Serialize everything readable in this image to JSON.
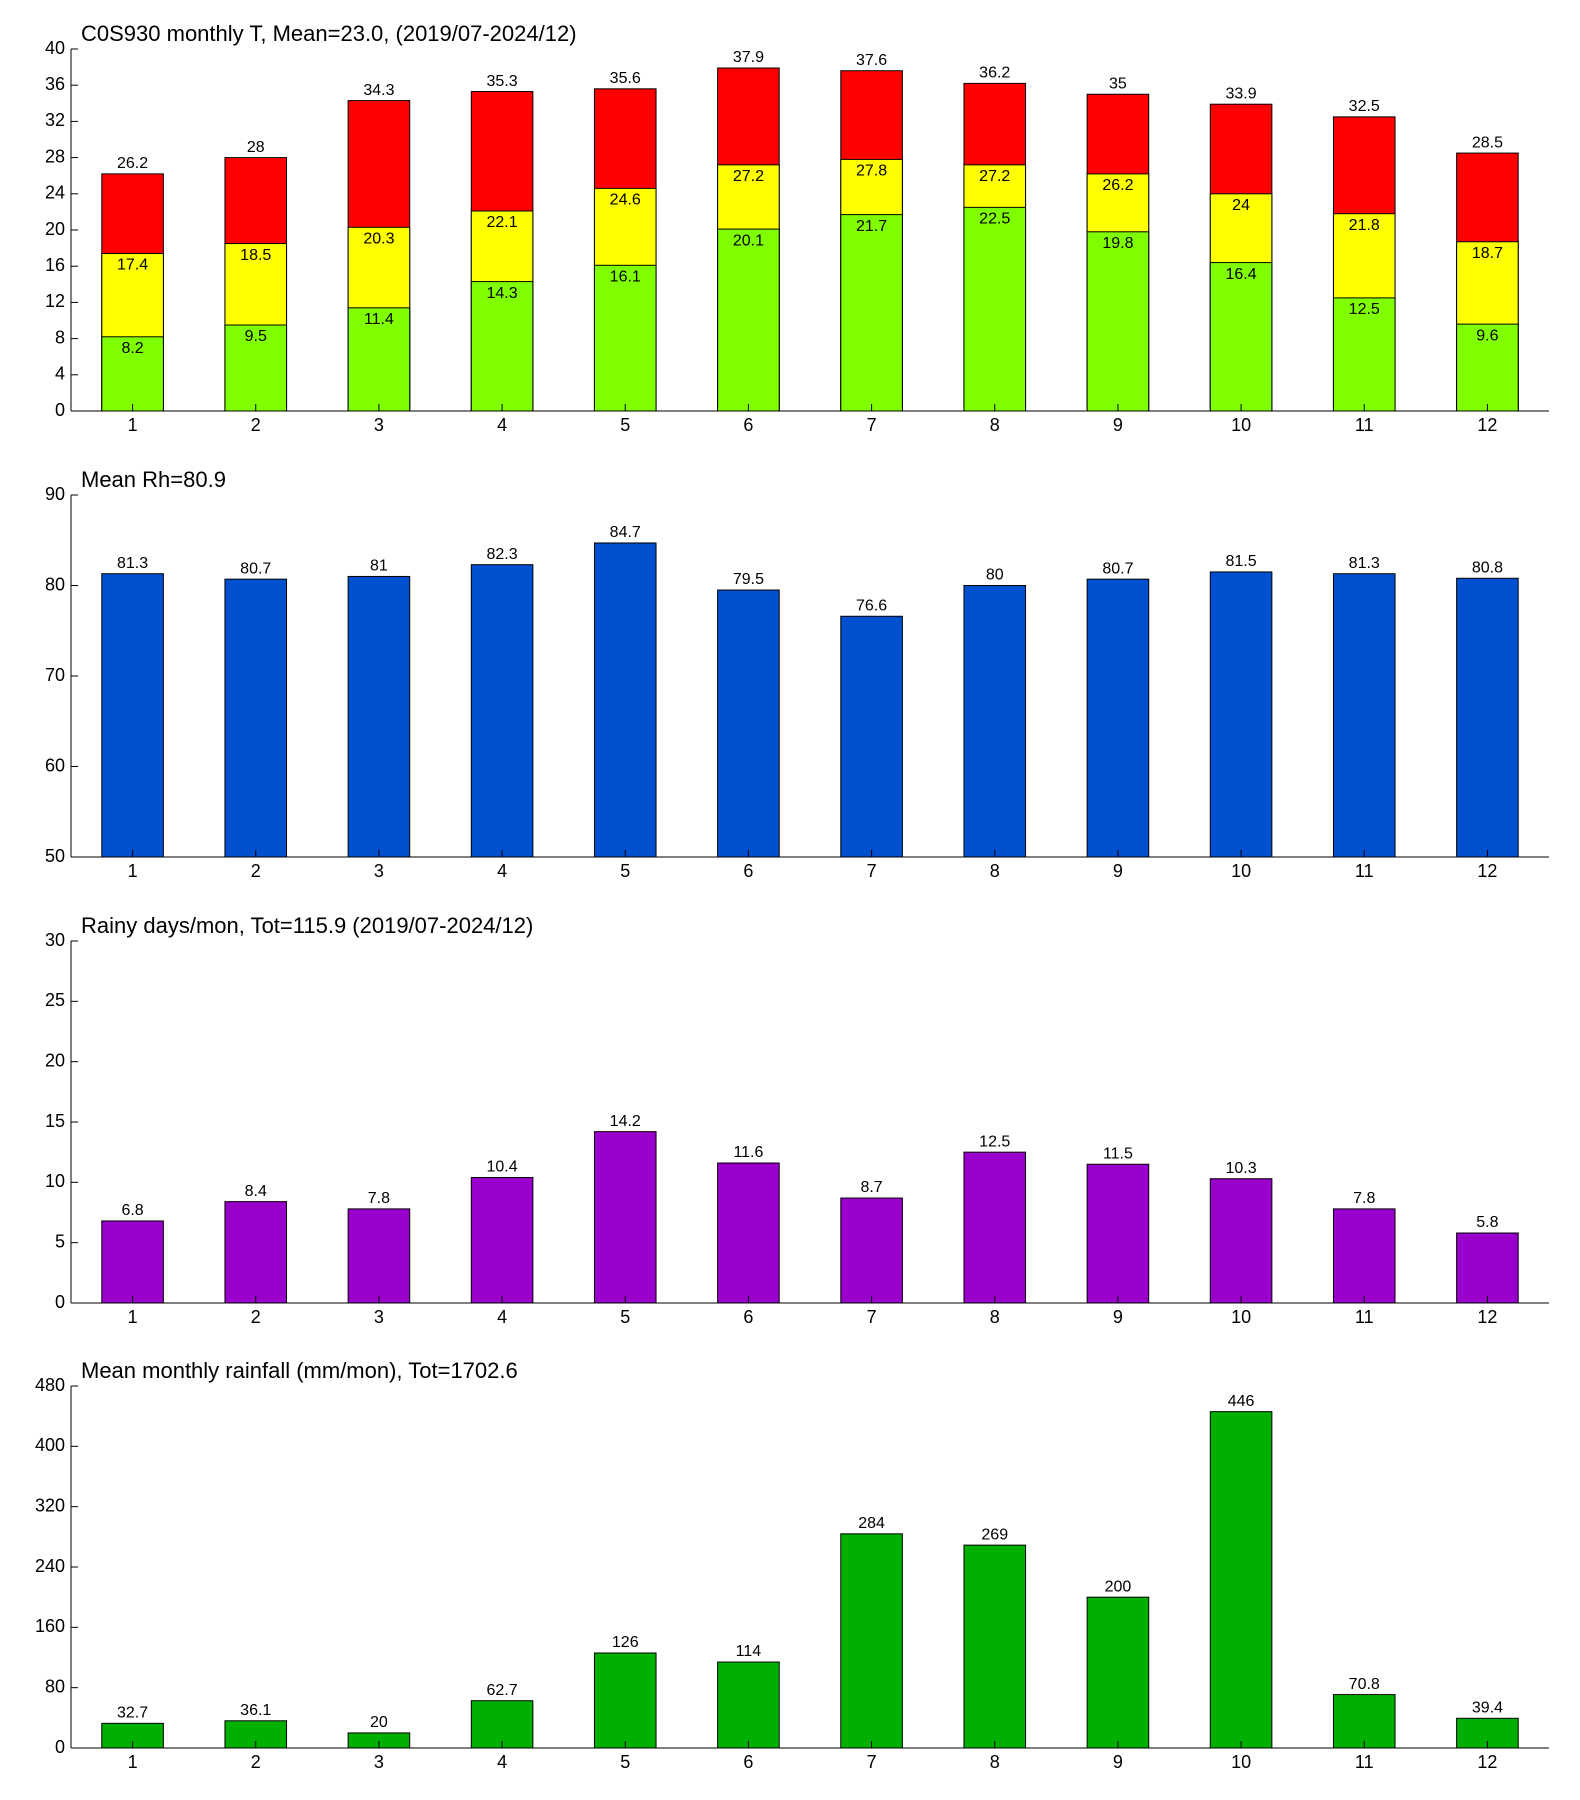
{
  "chart_data": [
    {
      "type": "bar",
      "title": "C0S930 monthly T, Mean=23.0, (2019/07-2024/12)",
      "categories": [
        "1",
        "2",
        "3",
        "4",
        "5",
        "6",
        "7",
        "8",
        "9",
        "10",
        "11",
        "12"
      ],
      "series": [
        {
          "color": "#80ff00",
          "values": [
            8.2,
            9.5,
            11.4,
            14.3,
            16.1,
            20.1,
            21.7,
            22.5,
            19.8,
            16.4,
            12.5,
            9.6
          ]
        },
        {
          "color": "#ffff00",
          "values": [
            17.4,
            18.5,
            20.3,
            22.1,
            24.6,
            27.2,
            27.8,
            27.2,
            26.2,
            24,
            21.8,
            18.7
          ]
        },
        {
          "color": "#ff0000",
          "values": [
            26.2,
            28,
            34.3,
            35.3,
            35.6,
            37.9,
            37.6,
            36.2,
            35,
            33.9,
            32.5,
            28.5
          ]
        }
      ],
      "ylim": [
        0,
        40
      ],
      "yticks": [
        0,
        4,
        8,
        12,
        16,
        20,
        24,
        28,
        32,
        36,
        40
      ]
    },
    {
      "type": "bar",
      "title": "Mean Rh=80.9",
      "categories": [
        "1",
        "2",
        "3",
        "4",
        "5",
        "6",
        "7",
        "8",
        "9",
        "10",
        "11",
        "12"
      ],
      "series": [
        {
          "color": "#0050d0",
          "values": [
            81.3,
            80.7,
            81,
            82.3,
            84.7,
            79.5,
            76.6,
            80,
            80.7,
            81.5,
            81.3,
            80.8
          ]
        }
      ],
      "ylim": [
        50,
        90
      ],
      "yticks": [
        50,
        60,
        70,
        80,
        90
      ]
    },
    {
      "type": "bar",
      "title": "Rainy days/mon, Tot=115.9 (2019/07-2024/12)",
      "categories": [
        "1",
        "2",
        "3",
        "4",
        "5",
        "6",
        "7",
        "8",
        "9",
        "10",
        "11",
        "12"
      ],
      "series": [
        {
          "color": "#9900cc",
          "values": [
            6.8,
            8.4,
            7.8,
            10.4,
            14.2,
            11.6,
            8.7,
            12.5,
            11.5,
            10.3,
            7.8,
            5.8
          ]
        }
      ],
      "ylim": [
        0,
        30
      ],
      "yticks": [
        0,
        5,
        10,
        15,
        20,
        25,
        30
      ]
    },
    {
      "type": "bar",
      "title": "Mean monthly rainfall (mm/mon), Tot=1702.6",
      "categories": [
        "1",
        "2",
        "3",
        "4",
        "5",
        "6",
        "7",
        "8",
        "9",
        "10",
        "11",
        "12"
      ],
      "series": [
        {
          "color": "#00b000",
          "values": [
            32.7,
            36.1,
            20,
            62.7,
            126,
            114,
            284,
            269,
            200,
            446,
            70.8,
            39.4
          ]
        }
      ],
      "ylim": [
        0,
        480
      ],
      "yticks": [
        0,
        80,
        160,
        240,
        320,
        400,
        480
      ]
    }
  ]
}
